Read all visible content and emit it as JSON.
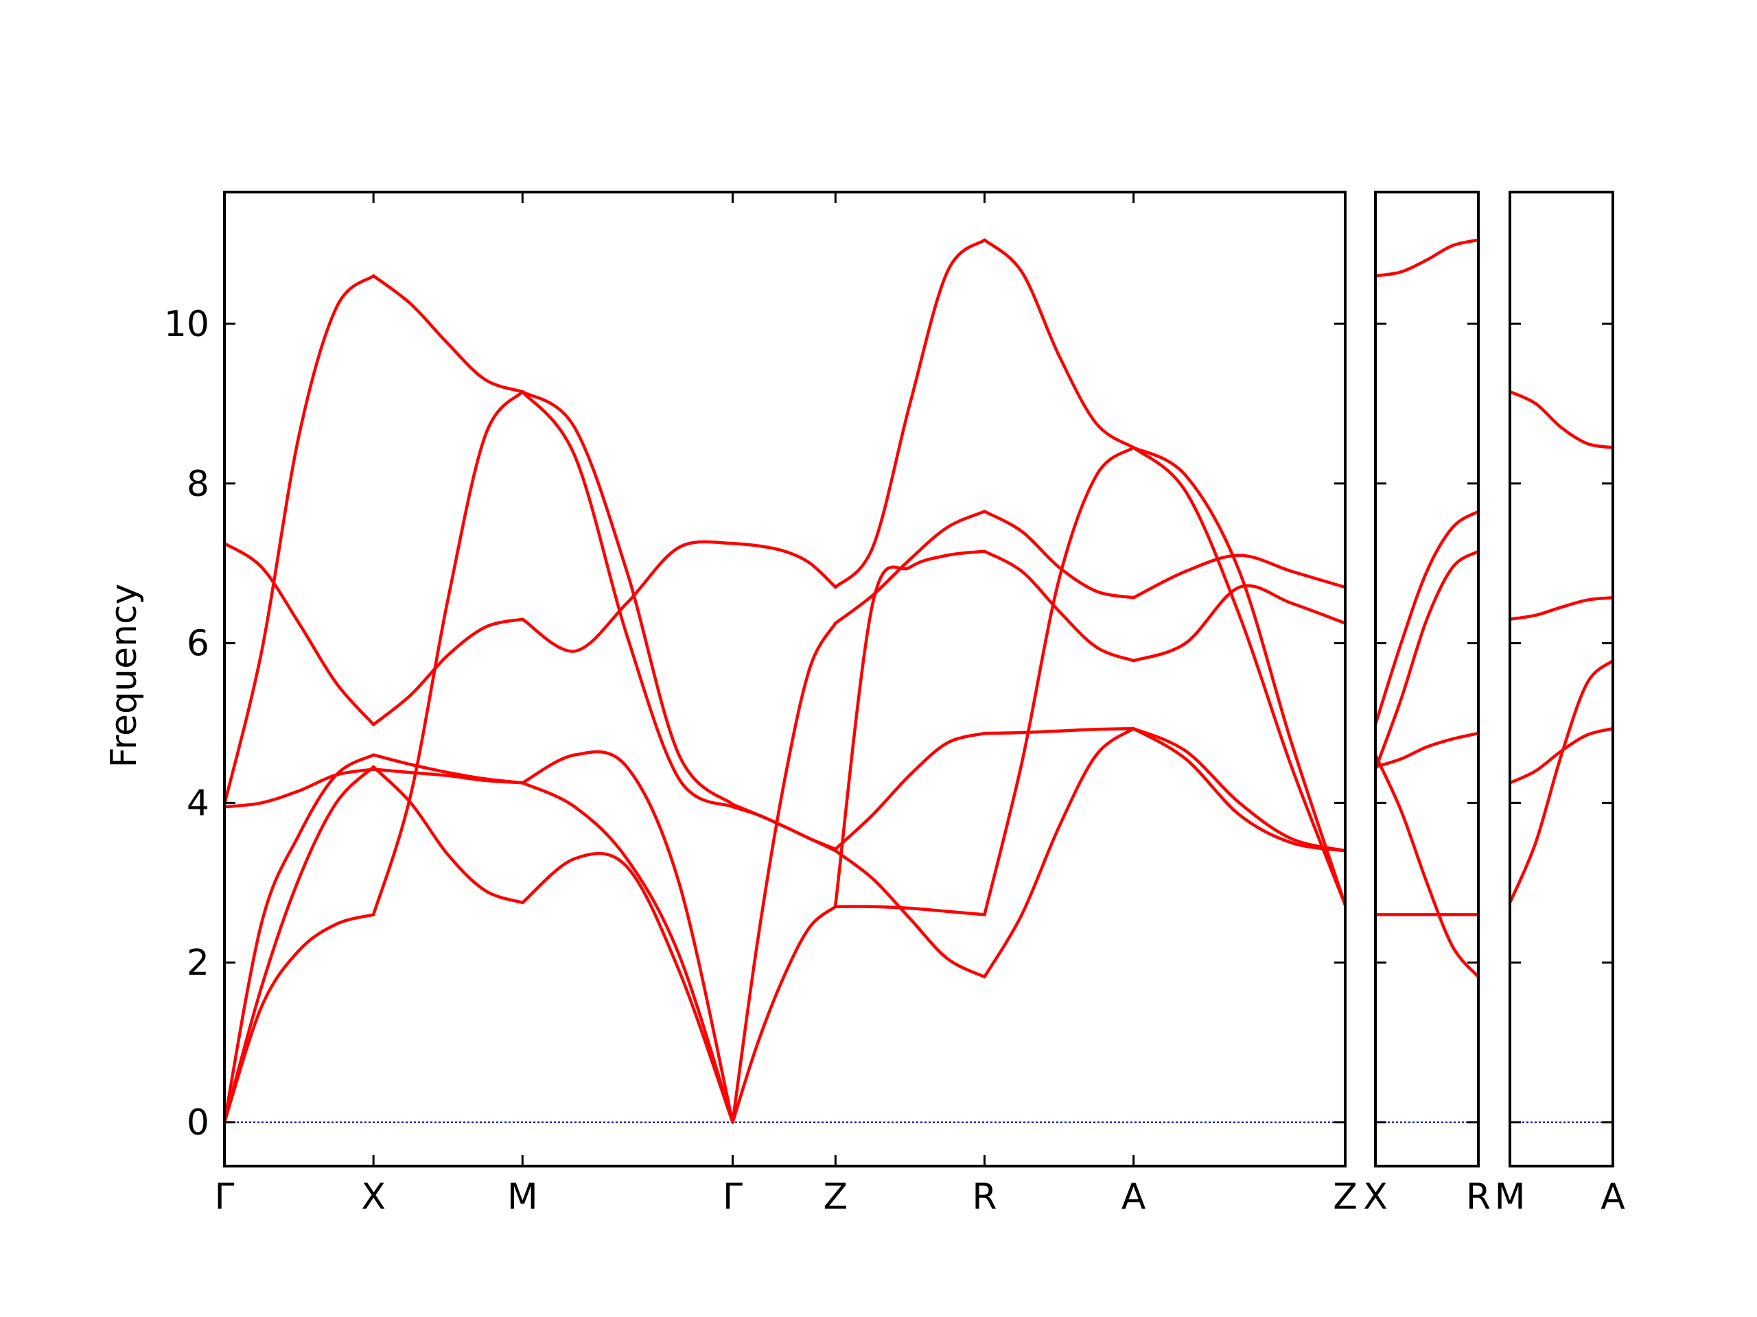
{
  "chart_data": {
    "type": "line",
    "ylabel": "Frequency",
    "xlabel": "",
    "ylim": [
      -0.55,
      11.65
    ],
    "yticks": [
      "0",
      "2",
      "4",
      "6",
      "8",
      "10"
    ],
    "grid": false,
    "legend": "none",
    "colors": {
      "bands": "#ff0000",
      "zero_line": "#0000cc",
      "axes": "#000000"
    },
    "panels": [
      {
        "x_range": [
          0,
          7.52
        ],
        "tick_labels": [
          {
            "x": 0.0,
            "label": "Γ"
          },
          {
            "x": 1.0,
            "label": "X"
          },
          {
            "x": 2.0,
            "label": "M"
          },
          {
            "x": 3.41,
            "label": "Γ"
          },
          {
            "x": 4.1,
            "label": "Z"
          },
          {
            "x": 5.1,
            "label": "R"
          },
          {
            "x": 6.1,
            "label": "A"
          },
          {
            "x": 7.52,
            "label": "Z"
          }
        ],
        "segments": [
          {
            "x": [
              0.0,
              0.25,
              0.5,
              0.75,
              1.0
            ],
            "series": [
              {
                "values": [
                  0.0,
                  1.45,
                  2.15,
                  2.48,
                  2.6
                ]
              },
              {
                "values": [
                  0.0,
                  1.7,
                  3.05,
                  4.0,
                  4.45
                ]
              },
              {
                "values": [
                  0.0,
                  2.5,
                  3.6,
                  4.35,
                  4.6
                ]
              },
              {
                "values": [
                  3.95,
                  4.0,
                  4.15,
                  4.35,
                  4.42
                ]
              },
              {
                "values": [
                  3.98,
                  5.9,
                  8.6,
                  10.2,
                  10.6
                ]
              },
              {
                "values": [
                  7.25,
                  6.95,
                  6.25,
                  5.5,
                  4.98
                ]
              }
            ]
          },
          {
            "x": [
              1.0,
              1.25,
              1.5,
              1.75,
              2.0
            ],
            "series": [
              {
                "values": [
                  2.6,
                  4.1,
                  6.55,
                  8.6,
                  9.15
                ]
              },
              {
                "values": [
                  4.45,
                  4.0,
                  3.35,
                  2.9,
                  2.75
                ]
              },
              {
                "values": [
                  4.6,
                  4.48,
                  4.38,
                  4.3,
                  4.25
                ]
              },
              {
                "values": [
                  4.42,
                  4.38,
                  4.34,
                  4.28,
                  4.25
                ]
              },
              {
                "values": [
                  10.6,
                  10.25,
                  9.75,
                  9.3,
                  9.15
                ]
              },
              {
                "values": [
                  4.98,
                  5.35,
                  5.85,
                  6.2,
                  6.3
                ]
              }
            ]
          },
          {
            "x": [
              2.0,
              2.35,
              2.7,
              3.05,
              3.41
            ],
            "series": [
              {
                "values": [
                  2.75,
                  3.3,
                  3.2,
                  1.9,
                  0.0
                ]
              },
              {
                "values": [
                  4.25,
                  3.95,
                  3.3,
                  2.1,
                  0.0
                ]
              },
              {
                "values": [
                  4.25,
                  4.6,
                  4.45,
                  3.0,
                  0.0
                ]
              },
              {
                "values": [
                  9.15,
                  8.35,
                  6.1,
                  4.3,
                  3.95
                ]
              },
              {
                "values": [
                  9.15,
                  8.7,
                  6.9,
                  4.6,
                  3.98
                ]
              },
              {
                "values": [
                  6.3,
                  5.9,
                  6.5,
                  7.2,
                  7.25
                ]
              }
            ]
          },
          {
            "x": [
              3.41,
              3.58,
              3.76,
              3.93,
              4.1
            ],
            "series": [
              {
                "values": [
                  0.0,
                  1.0,
                  1.85,
                  2.45,
                  2.7
                ]
              },
              {
                "values": [
                  0.0,
                  2.3,
                  4.3,
                  5.7,
                  6.25
                ]
              },
              {
                "values": [
                  3.95,
                  3.85,
                  3.7,
                  3.55,
                  3.4
                ]
              },
              {
                "values": [
                  3.98,
                  3.85,
                  3.7,
                  3.55,
                  3.42
                ]
              },
              {
                "values": [
                  7.25,
                  7.22,
                  7.15,
                  7.0,
                  6.7
                ]
              }
            ]
          },
          {
            "x": [
              4.1,
              4.35,
              4.6,
              4.85,
              5.1
            ],
            "series": [
              {
                "values": [
                  2.7,
                  2.7,
                  2.68,
                  2.64,
                  2.6
                ]
              },
              {
                "values": [
                  3.4,
                  3.05,
                  2.55,
                  2.05,
                  1.82
                ]
              },
              {
                "values": [
                  3.42,
                  3.85,
                  4.35,
                  4.75,
                  4.87
                ]
              },
              {
                "values": [
                  2.72,
                  6.5,
                  6.95,
                  7.1,
                  7.15
                ]
              },
              {
                "values": [
                  6.25,
                  6.6,
                  7.05,
                  7.45,
                  7.65
                ]
              },
              {
                "values": [
                  6.7,
                  7.2,
                  9.0,
                  10.65,
                  11.05
                ]
              }
            ]
          },
          {
            "x": [
              5.1,
              5.35,
              5.6,
              5.85,
              6.1
            ],
            "series": [
              {
                "values": [
                  1.82,
                  2.6,
                  3.7,
                  4.6,
                  4.93
                ]
              },
              {
                "values": [
                  2.6,
                  4.5,
                  6.8,
                  8.1,
                  8.45
                ]
              },
              {
                "values": [
                  4.87,
                  4.88,
                  4.9,
                  4.92,
                  4.93
                ]
              },
              {
                "values": [
                  7.15,
                  6.9,
                  6.4,
                  5.95,
                  5.78
                ]
              },
              {
                "values": [
                  7.65,
                  7.4,
                  6.95,
                  6.65,
                  6.57
                ]
              },
              {
                "values": [
                  11.05,
                  10.65,
                  9.6,
                  8.75,
                  8.45
                ]
              }
            ]
          },
          {
            "x": [
              6.1,
              6.45,
              6.81,
              7.16,
              7.52
            ],
            "series": [
              {
                "values": [
                  4.93,
                  4.55,
                  3.85,
                  3.5,
                  3.4
                ]
              },
              {
                "values": [
                  4.93,
                  4.65,
                  4.0,
                  3.55,
                  3.4
                ]
              },
              {
                "values": [
                  8.45,
                  7.9,
                  6.35,
                  4.45,
                  2.72
                ]
              },
              {
                "values": [
                  8.45,
                  8.1,
                  6.9,
                  4.75,
                  2.72
                ]
              },
              {
                "values": [
                  5.78,
                  6.0,
                  6.7,
                  6.5,
                  6.25
                ]
              },
              {
                "values": [
                  6.57,
                  6.9,
                  7.1,
                  6.9,
                  6.7
                ]
              }
            ]
          }
        ]
      },
      {
        "x_range": [
          0,
          0.69
        ],
        "tick_labels": [
          {
            "x": 0.0,
            "label": "X"
          },
          {
            "x": 0.69,
            "label": "R"
          }
        ],
        "segments": [
          {
            "x": [
              0.0,
              0.1725,
              0.345,
              0.5175,
              0.69
            ],
            "series": [
              {
                "values": [
                  2.6,
                  2.6,
                  2.6,
                  2.6,
                  2.6
                ]
              },
              {
                "values": [
                  4.6,
                  3.9,
                  3.0,
                  2.2,
                  1.82
                ]
              },
              {
                "values": [
                  4.45,
                  4.55,
                  4.7,
                  4.8,
                  4.87
                ]
              },
              {
                "values": [
                  4.42,
                  5.3,
                  6.3,
                  6.95,
                  7.15
                ]
              },
              {
                "values": [
                  4.98,
                  6.0,
                  6.9,
                  7.45,
                  7.65
                ]
              },
              {
                "values": [
                  10.6,
                  10.65,
                  10.8,
                  10.98,
                  11.05
                ]
              }
            ]
          }
        ]
      },
      {
        "x_range": [
          0,
          0.69
        ],
        "tick_labels": [
          {
            "x": 0.0,
            "label": "M"
          },
          {
            "x": 0.69,
            "label": "A"
          }
        ],
        "segments": [
          {
            "x": [
              0.0,
              0.1725,
              0.345,
              0.5175,
              0.69
            ],
            "series": [
              {
                "values": [
                  2.75,
                  3.5,
                  4.6,
                  5.5,
                  5.78
                ]
              },
              {
                "values": [
                  4.25,
                  4.4,
                  4.65,
                  4.85,
                  4.93
                ]
              },
              {
                "values": [
                  6.3,
                  6.35,
                  6.45,
                  6.54,
                  6.57
                ]
              },
              {
                "values": [
                  9.15,
                  9.0,
                  8.7,
                  8.5,
                  8.45
                ]
              }
            ]
          }
        ]
      }
    ]
  }
}
